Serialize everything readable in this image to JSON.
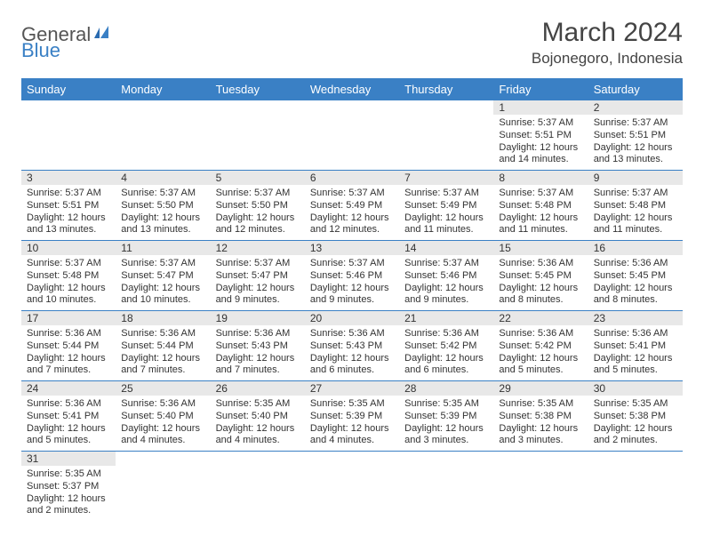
{
  "brand": {
    "general": "General",
    "blue": "Blue"
  },
  "title": "March 2024",
  "location": "Bojonegoro, Indonesia",
  "colors": {
    "header_bg": "#3a80c5",
    "header_text": "#ffffff",
    "daynum_bg": "#e8e8e8",
    "cell_border": "#3a80c5",
    "body_text": "#333333"
  },
  "dayHeaders": [
    "Sunday",
    "Monday",
    "Tuesday",
    "Wednesday",
    "Thursday",
    "Friday",
    "Saturday"
  ],
  "weeks": [
    [
      null,
      null,
      null,
      null,
      null,
      {
        "n": "1",
        "sr": "Sunrise: 5:37 AM",
        "ss": "Sunset: 5:51 PM",
        "d1": "Daylight: 12 hours",
        "d2": "and 14 minutes."
      },
      {
        "n": "2",
        "sr": "Sunrise: 5:37 AM",
        "ss": "Sunset: 5:51 PM",
        "d1": "Daylight: 12 hours",
        "d2": "and 13 minutes."
      }
    ],
    [
      {
        "n": "3",
        "sr": "Sunrise: 5:37 AM",
        "ss": "Sunset: 5:51 PM",
        "d1": "Daylight: 12 hours",
        "d2": "and 13 minutes."
      },
      {
        "n": "4",
        "sr": "Sunrise: 5:37 AM",
        "ss": "Sunset: 5:50 PM",
        "d1": "Daylight: 12 hours",
        "d2": "and 13 minutes."
      },
      {
        "n": "5",
        "sr": "Sunrise: 5:37 AM",
        "ss": "Sunset: 5:50 PM",
        "d1": "Daylight: 12 hours",
        "d2": "and 12 minutes."
      },
      {
        "n": "6",
        "sr": "Sunrise: 5:37 AM",
        "ss": "Sunset: 5:49 PM",
        "d1": "Daylight: 12 hours",
        "d2": "and 12 minutes."
      },
      {
        "n": "7",
        "sr": "Sunrise: 5:37 AM",
        "ss": "Sunset: 5:49 PM",
        "d1": "Daylight: 12 hours",
        "d2": "and 11 minutes."
      },
      {
        "n": "8",
        "sr": "Sunrise: 5:37 AM",
        "ss": "Sunset: 5:48 PM",
        "d1": "Daylight: 12 hours",
        "d2": "and 11 minutes."
      },
      {
        "n": "9",
        "sr": "Sunrise: 5:37 AM",
        "ss": "Sunset: 5:48 PM",
        "d1": "Daylight: 12 hours",
        "d2": "and 11 minutes."
      }
    ],
    [
      {
        "n": "10",
        "sr": "Sunrise: 5:37 AM",
        "ss": "Sunset: 5:48 PM",
        "d1": "Daylight: 12 hours",
        "d2": "and 10 minutes."
      },
      {
        "n": "11",
        "sr": "Sunrise: 5:37 AM",
        "ss": "Sunset: 5:47 PM",
        "d1": "Daylight: 12 hours",
        "d2": "and 10 minutes."
      },
      {
        "n": "12",
        "sr": "Sunrise: 5:37 AM",
        "ss": "Sunset: 5:47 PM",
        "d1": "Daylight: 12 hours",
        "d2": "and 9 minutes."
      },
      {
        "n": "13",
        "sr": "Sunrise: 5:37 AM",
        "ss": "Sunset: 5:46 PM",
        "d1": "Daylight: 12 hours",
        "d2": "and 9 minutes."
      },
      {
        "n": "14",
        "sr": "Sunrise: 5:37 AM",
        "ss": "Sunset: 5:46 PM",
        "d1": "Daylight: 12 hours",
        "d2": "and 9 minutes."
      },
      {
        "n": "15",
        "sr": "Sunrise: 5:36 AM",
        "ss": "Sunset: 5:45 PM",
        "d1": "Daylight: 12 hours",
        "d2": "and 8 minutes."
      },
      {
        "n": "16",
        "sr": "Sunrise: 5:36 AM",
        "ss": "Sunset: 5:45 PM",
        "d1": "Daylight: 12 hours",
        "d2": "and 8 minutes."
      }
    ],
    [
      {
        "n": "17",
        "sr": "Sunrise: 5:36 AM",
        "ss": "Sunset: 5:44 PM",
        "d1": "Daylight: 12 hours",
        "d2": "and 7 minutes."
      },
      {
        "n": "18",
        "sr": "Sunrise: 5:36 AM",
        "ss": "Sunset: 5:44 PM",
        "d1": "Daylight: 12 hours",
        "d2": "and 7 minutes."
      },
      {
        "n": "19",
        "sr": "Sunrise: 5:36 AM",
        "ss": "Sunset: 5:43 PM",
        "d1": "Daylight: 12 hours",
        "d2": "and 7 minutes."
      },
      {
        "n": "20",
        "sr": "Sunrise: 5:36 AM",
        "ss": "Sunset: 5:43 PM",
        "d1": "Daylight: 12 hours",
        "d2": "and 6 minutes."
      },
      {
        "n": "21",
        "sr": "Sunrise: 5:36 AM",
        "ss": "Sunset: 5:42 PM",
        "d1": "Daylight: 12 hours",
        "d2": "and 6 minutes."
      },
      {
        "n": "22",
        "sr": "Sunrise: 5:36 AM",
        "ss": "Sunset: 5:42 PM",
        "d1": "Daylight: 12 hours",
        "d2": "and 5 minutes."
      },
      {
        "n": "23",
        "sr": "Sunrise: 5:36 AM",
        "ss": "Sunset: 5:41 PM",
        "d1": "Daylight: 12 hours",
        "d2": "and 5 minutes."
      }
    ],
    [
      {
        "n": "24",
        "sr": "Sunrise: 5:36 AM",
        "ss": "Sunset: 5:41 PM",
        "d1": "Daylight: 12 hours",
        "d2": "and 5 minutes."
      },
      {
        "n": "25",
        "sr": "Sunrise: 5:36 AM",
        "ss": "Sunset: 5:40 PM",
        "d1": "Daylight: 12 hours",
        "d2": "and 4 minutes."
      },
      {
        "n": "26",
        "sr": "Sunrise: 5:35 AM",
        "ss": "Sunset: 5:40 PM",
        "d1": "Daylight: 12 hours",
        "d2": "and 4 minutes."
      },
      {
        "n": "27",
        "sr": "Sunrise: 5:35 AM",
        "ss": "Sunset: 5:39 PM",
        "d1": "Daylight: 12 hours",
        "d2": "and 4 minutes."
      },
      {
        "n": "28",
        "sr": "Sunrise: 5:35 AM",
        "ss": "Sunset: 5:39 PM",
        "d1": "Daylight: 12 hours",
        "d2": "and 3 minutes."
      },
      {
        "n": "29",
        "sr": "Sunrise: 5:35 AM",
        "ss": "Sunset: 5:38 PM",
        "d1": "Daylight: 12 hours",
        "d2": "and 3 minutes."
      },
      {
        "n": "30",
        "sr": "Sunrise: 5:35 AM",
        "ss": "Sunset: 5:38 PM",
        "d1": "Daylight: 12 hours",
        "d2": "and 2 minutes."
      }
    ],
    [
      {
        "n": "31",
        "sr": "Sunrise: 5:35 AM",
        "ss": "Sunset: 5:37 PM",
        "d1": "Daylight: 12 hours",
        "d2": "and 2 minutes."
      },
      null,
      null,
      null,
      null,
      null,
      null
    ]
  ]
}
